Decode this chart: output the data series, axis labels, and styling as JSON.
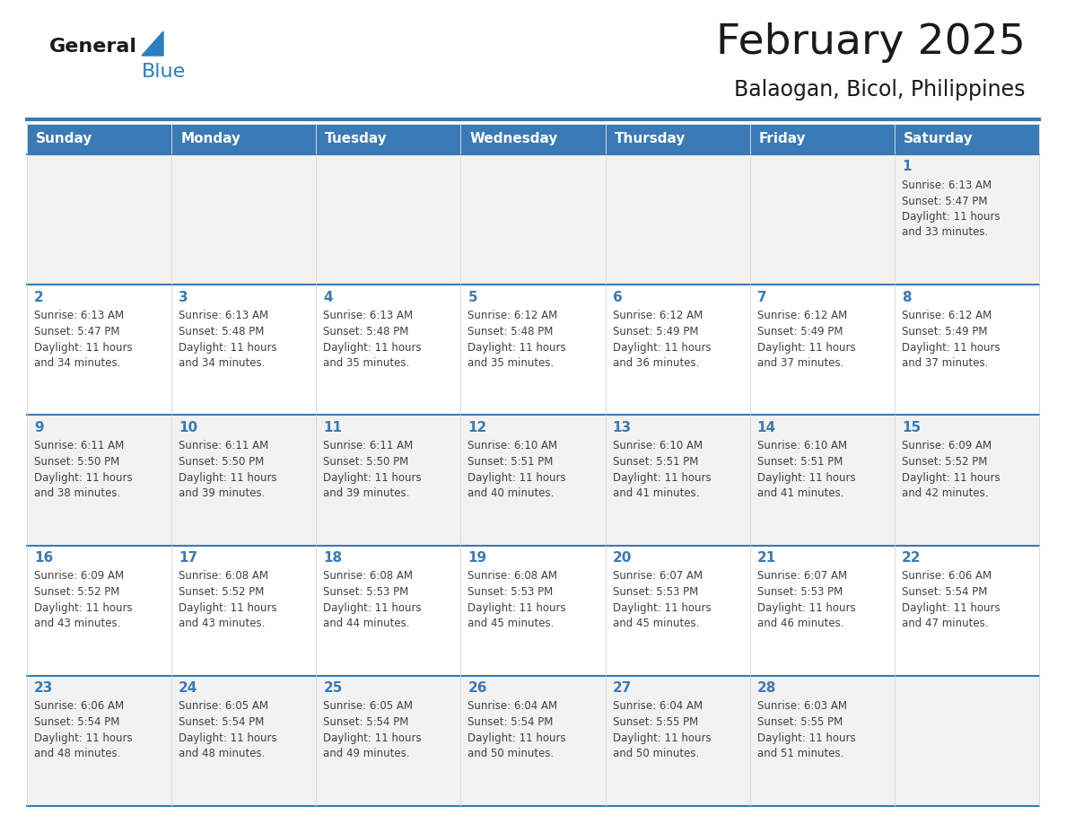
{
  "title": "February 2025",
  "subtitle": "Balaogan, Bicol, Philippines",
  "header_bg": "#3a7ab5",
  "header_text": "#ffffff",
  "day_names": [
    "Sunday",
    "Monday",
    "Tuesday",
    "Wednesday",
    "Thursday",
    "Friday",
    "Saturday"
  ],
  "row_bg_odd": "#f2f2f2",
  "row_bg_even": "#ffffff",
  "cell_border_color": "#3a7ab5",
  "day_number_color": "#3a7ab5",
  "info_text_color": "#404040",
  "separator_color": "#3a7ab5",
  "calendar_data": [
    [
      null,
      null,
      null,
      null,
      null,
      null,
      {
        "day": "1",
        "sunrise": "6:13 AM",
        "sunset": "5:47 PM",
        "daylight": "11 hours and 33 minutes."
      }
    ],
    [
      {
        "day": "2",
        "sunrise": "6:13 AM",
        "sunset": "5:47 PM",
        "daylight": "11 hours and 34 minutes."
      },
      {
        "day": "3",
        "sunrise": "6:13 AM",
        "sunset": "5:48 PM",
        "daylight": "11 hours and 34 minutes."
      },
      {
        "day": "4",
        "sunrise": "6:13 AM",
        "sunset": "5:48 PM",
        "daylight": "11 hours and 35 minutes."
      },
      {
        "day": "5",
        "sunrise": "6:12 AM",
        "sunset": "5:48 PM",
        "daylight": "11 hours and 35 minutes."
      },
      {
        "day": "6",
        "sunrise": "6:12 AM",
        "sunset": "5:49 PM",
        "daylight": "11 hours and 36 minutes."
      },
      {
        "day": "7",
        "sunrise": "6:12 AM",
        "sunset": "5:49 PM",
        "daylight": "11 hours and 37 minutes."
      },
      {
        "day": "8",
        "sunrise": "6:12 AM",
        "sunset": "5:49 PM",
        "daylight": "11 hours and 37 minutes."
      }
    ],
    [
      {
        "day": "9",
        "sunrise": "6:11 AM",
        "sunset": "5:50 PM",
        "daylight": "11 hours and 38 minutes."
      },
      {
        "day": "10",
        "sunrise": "6:11 AM",
        "sunset": "5:50 PM",
        "daylight": "11 hours and 39 minutes."
      },
      {
        "day": "11",
        "sunrise": "6:11 AM",
        "sunset": "5:50 PM",
        "daylight": "11 hours and 39 minutes."
      },
      {
        "day": "12",
        "sunrise": "6:10 AM",
        "sunset": "5:51 PM",
        "daylight": "11 hours and 40 minutes."
      },
      {
        "day": "13",
        "sunrise": "6:10 AM",
        "sunset": "5:51 PM",
        "daylight": "11 hours and 41 minutes."
      },
      {
        "day": "14",
        "sunrise": "6:10 AM",
        "sunset": "5:51 PM",
        "daylight": "11 hours and 41 minutes."
      },
      {
        "day": "15",
        "sunrise": "6:09 AM",
        "sunset": "5:52 PM",
        "daylight": "11 hours and 42 minutes."
      }
    ],
    [
      {
        "day": "16",
        "sunrise": "6:09 AM",
        "sunset": "5:52 PM",
        "daylight": "11 hours and 43 minutes."
      },
      {
        "day": "17",
        "sunrise": "6:08 AM",
        "sunset": "5:52 PM",
        "daylight": "11 hours and 43 minutes."
      },
      {
        "day": "18",
        "sunrise": "6:08 AM",
        "sunset": "5:53 PM",
        "daylight": "11 hours and 44 minutes."
      },
      {
        "day": "19",
        "sunrise": "6:08 AM",
        "sunset": "5:53 PM",
        "daylight": "11 hours and 45 minutes."
      },
      {
        "day": "20",
        "sunrise": "6:07 AM",
        "sunset": "5:53 PM",
        "daylight": "11 hours and 45 minutes."
      },
      {
        "day": "21",
        "sunrise": "6:07 AM",
        "sunset": "5:53 PM",
        "daylight": "11 hours and 46 minutes."
      },
      {
        "day": "22",
        "sunrise": "6:06 AM",
        "sunset": "5:54 PM",
        "daylight": "11 hours and 47 minutes."
      }
    ],
    [
      {
        "day": "23",
        "sunrise": "6:06 AM",
        "sunset": "5:54 PM",
        "daylight": "11 hours and 48 minutes."
      },
      {
        "day": "24",
        "sunrise": "6:05 AM",
        "sunset": "5:54 PM",
        "daylight": "11 hours and 48 minutes."
      },
      {
        "day": "25",
        "sunrise": "6:05 AM",
        "sunset": "5:54 PM",
        "daylight": "11 hours and 49 minutes."
      },
      {
        "day": "26",
        "sunrise": "6:04 AM",
        "sunset": "5:54 PM",
        "daylight": "11 hours and 50 minutes."
      },
      {
        "day": "27",
        "sunrise": "6:04 AM",
        "sunset": "5:55 PM",
        "daylight": "11 hours and 50 minutes."
      },
      {
        "day": "28",
        "sunrise": "6:03 AM",
        "sunset": "5:55 PM",
        "daylight": "11 hours and 51 minutes."
      },
      null
    ]
  ],
  "logo_general_color": "#1a1a1a",
  "logo_blue_color": "#2a7fc0",
  "logo_triangle_color": "#2a7fc0"
}
